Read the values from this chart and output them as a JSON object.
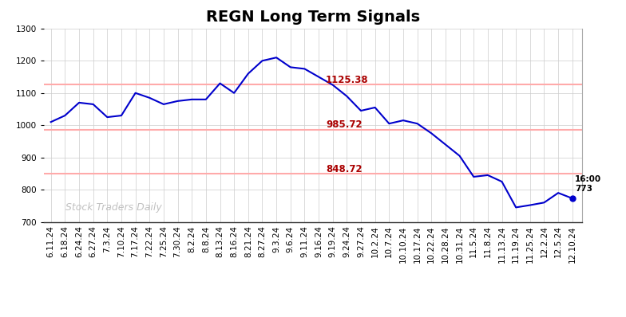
{
  "title": "REGN Long Term Signals",
  "xlabels": [
    "6.11.24",
    "6.18.24",
    "6.24.24",
    "6.27.24",
    "7.3.24",
    "7.10.24",
    "7.17.24",
    "7.22.24",
    "7.25.24",
    "7.30.24",
    "8.2.24",
    "8.8.24",
    "8.13.24",
    "8.16.24",
    "8.21.24",
    "8.27.24",
    "9.3.24",
    "9.6.24",
    "9.11.24",
    "9.16.24",
    "9.19.24",
    "9.24.24",
    "9.27.24",
    "10.2.24",
    "10.7.24",
    "10.10.24",
    "10.17.24",
    "10.22.24",
    "10.28.24",
    "10.31.24",
    "11.5.24",
    "11.8.24",
    "11.13.24",
    "11.19.24",
    "11.25.24",
    "12.2.24",
    "12.5.24",
    "12.10.24"
  ],
  "prices": [
    1010,
    1030,
    1070,
    1065,
    1025,
    1030,
    1100,
    1085,
    1065,
    1075,
    1080,
    1080,
    1130,
    1100,
    1160,
    1200,
    1210,
    1180,
    1175,
    1150,
    1125,
    1090,
    1045,
    1055,
    1005,
    1015,
    1005,
    975,
    940,
    905,
    840,
    845,
    825,
    745,
    752,
    760,
    790,
    773
  ],
  "hlines": [
    1125.38,
    985.72,
    848.72
  ],
  "hline_labels": [
    "1125.38",
    "985.72",
    "848.72"
  ],
  "hline_color": "#ffaaaa",
  "hline_label_color": "#aa0000",
  "line_color": "#0000cc",
  "last_price": 773,
  "watermark": "Stock Traders Daily",
  "ylim": [
    700,
    1300
  ],
  "yticks": [
    700,
    800,
    900,
    1000,
    1100,
    1200,
    1300
  ],
  "background_color": "#ffffff",
  "grid_color": "#cccccc",
  "title_fontsize": 14,
  "tick_fontsize": 7.5
}
